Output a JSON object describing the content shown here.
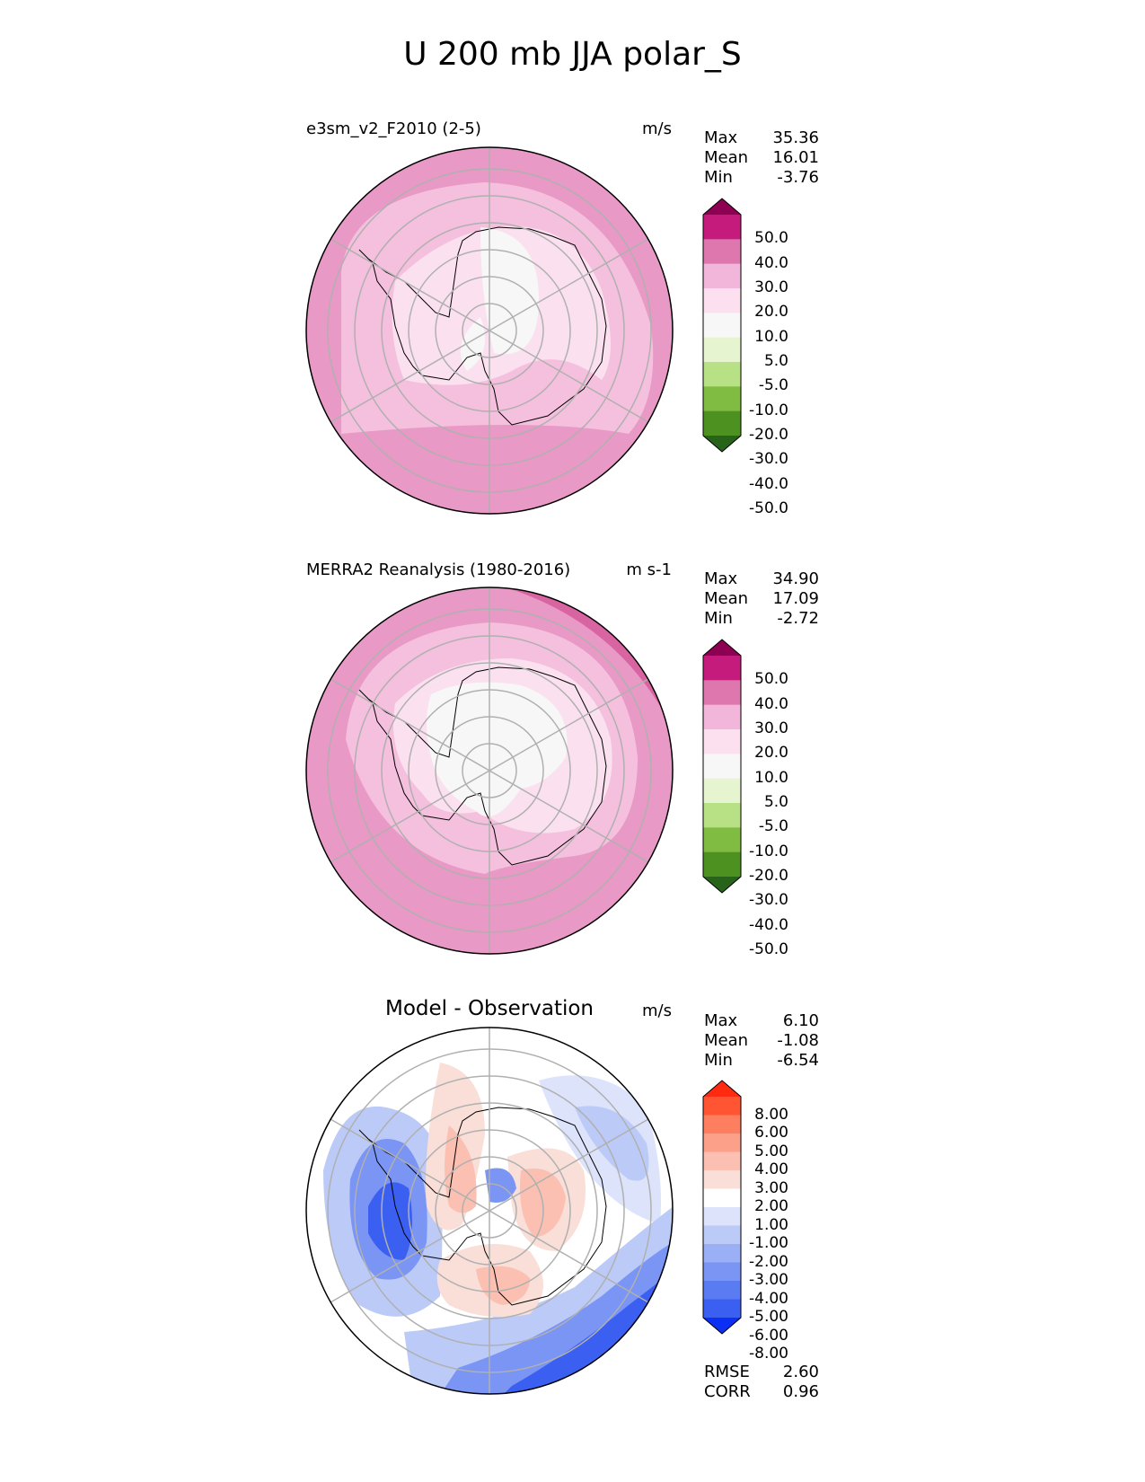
{
  "title": "U 200 mb JJA polar_S",
  "panels": [
    {
      "label": "e3sm_v2_F2010 (2-5)",
      "units": "m/s",
      "stats": [
        {
          "name": "Max",
          "value": "35.36"
        },
        {
          "name": "Mean",
          "value": "16.01"
        },
        {
          "name": "Min",
          "value": "-3.76"
        }
      ],
      "colorbar": {
        "ticks": [
          "50.0",
          "40.0",
          "30.0",
          "20.0",
          "10.0",
          "5.0",
          "-5.0",
          "-10.0",
          "-20.0",
          "-30.0",
          "-40.0",
          "-50.0"
        ],
        "colors": [
          "#8e0152",
          "#c51b7d",
          "#de77ae",
          "#f1b6da",
          "#fde0ef",
          "#f7f7f7",
          "#e6f5d0",
          "#b8e186",
          "#7fbc41",
          "#4d9221",
          "#276419"
        ]
      }
    },
    {
      "label": "MERRA2 Reanalysis (1980-2016)",
      "units": "m s-1",
      "stats": [
        {
          "name": "Max",
          "value": "34.90"
        },
        {
          "name": "Mean",
          "value": "17.09"
        },
        {
          "name": "Min",
          "value": "-2.72"
        }
      ],
      "colorbar": {
        "ticks": [
          "50.0",
          "40.0",
          "30.0",
          "20.0",
          "10.0",
          "5.0",
          "-5.0",
          "-10.0",
          "-20.0",
          "-30.0",
          "-40.0",
          "-50.0"
        ],
        "colors": [
          "#8e0152",
          "#c51b7d",
          "#de77ae",
          "#f1b6da",
          "#fde0ef",
          "#f7f7f7",
          "#e6f5d0",
          "#b8e186",
          "#7fbc41",
          "#4d9221",
          "#276419"
        ]
      }
    },
    {
      "label": "Model - Observation",
      "units": "m/s",
      "stats": [
        {
          "name": "Max",
          "value": "6.10"
        },
        {
          "name": "Mean",
          "value": "-1.08"
        },
        {
          "name": "Min",
          "value": "-6.54"
        }
      ],
      "colorbar": {
        "ticks": [
          "8.00",
          "6.00",
          "5.00",
          "4.00",
          "3.00",
          "2.00",
          "1.00",
          "-1.00",
          "-2.00",
          "-3.00",
          "-4.00",
          "-5.00",
          "-6.00",
          "-8.00"
        ],
        "colors": [
          "#ff2a0f",
          "#ff5533",
          "#fe7e60",
          "#fda08a",
          "#fbc0b2",
          "#f9dfd8",
          "#ffffff",
          "#dce3fb",
          "#bccaf8",
          "#9aaff6",
          "#7a95f4",
          "#5b7bf3",
          "#3b60f1",
          "#0b30f3"
        ]
      },
      "extra_stats": [
        {
          "name": "RMSE",
          "value": "2.60"
        },
        {
          "name": "CORR",
          "value": "0.96"
        }
      ]
    }
  ]
}
